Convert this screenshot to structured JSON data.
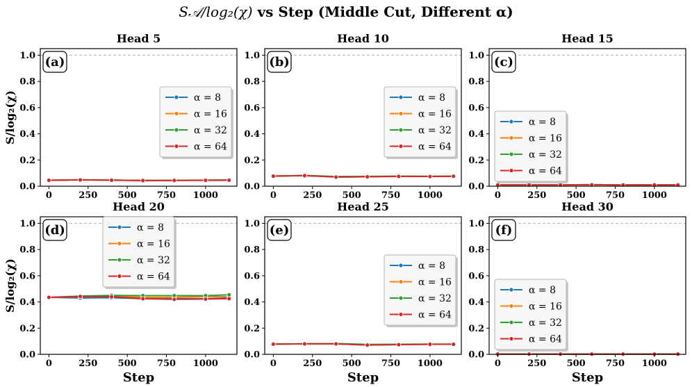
{
  "chart_data": {
    "type": "line",
    "title_math": "S𝒜/log₂(χ)",
    "title_text": " vs Step (Middle Cut, Different α)",
    "xlabel": "Step",
    "ylabel": "S/log₂(χ)",
    "xlim": [
      -55,
      1200
    ],
    "ylim": [
      0.0,
      1.05
    ],
    "xticks": [
      0,
      250,
      500,
      750,
      1000
    ],
    "yticks": [
      "0.0",
      "0.2",
      "0.4",
      "0.6",
      "0.8",
      "1.0"
    ],
    "reference_line_y": 1.0,
    "x": [
      0,
      200,
      400,
      600,
      800,
      1000,
      1150
    ],
    "series_names": [
      "α = 8",
      "α = 16",
      "α = 32",
      "α = 64"
    ],
    "colors": [
      "#1f77b4",
      "#ff7f0e",
      "#2ca02c",
      "#d62728"
    ],
    "panels": [
      {
        "tag": "(a)",
        "title": "Head 5",
        "legend_position": "center-right",
        "series": [
          {
            "name": "α = 8",
            "values": [
              0.045,
              0.048,
              0.046,
              0.043,
              0.044,
              0.045,
              0.046
            ]
          },
          {
            "name": "α = 16",
            "values": [
              0.045,
              0.048,
              0.046,
              0.043,
              0.044,
              0.045,
              0.046
            ]
          },
          {
            "name": "α = 32",
            "values": [
              0.045,
              0.049,
              0.046,
              0.044,
              0.045,
              0.046,
              0.047
            ]
          },
          {
            "name": "α = 64",
            "values": [
              0.045,
              0.048,
              0.046,
              0.043,
              0.044,
              0.045,
              0.046
            ]
          }
        ]
      },
      {
        "tag": "(b)",
        "title": "Head 10",
        "legend_position": "center-right",
        "series": [
          {
            "name": "α = 8",
            "values": [
              0.077,
              0.081,
              0.07,
              0.072,
              0.075,
              0.074,
              0.076
            ]
          },
          {
            "name": "α = 16",
            "values": [
              0.077,
              0.081,
              0.071,
              0.073,
              0.076,
              0.075,
              0.077
            ]
          },
          {
            "name": "α = 32",
            "values": [
              0.077,
              0.082,
              0.074,
              0.075,
              0.077,
              0.076,
              0.077
            ]
          },
          {
            "name": "α = 64",
            "values": [
              0.077,
              0.081,
              0.07,
              0.072,
              0.075,
              0.074,
              0.076
            ]
          }
        ]
      },
      {
        "tag": "(c)",
        "title": "Head 15",
        "legend_position": "center-left",
        "series": [
          {
            "name": "α = 8",
            "values": [
              0.01,
              0.01,
              0.01,
              0.011,
              0.01,
              0.01,
              0.01
            ]
          },
          {
            "name": "α = 16",
            "values": [
              0.01,
              0.01,
              0.01,
              0.011,
              0.01,
              0.01,
              0.01
            ]
          },
          {
            "name": "α = 32",
            "values": [
              0.01,
              0.01,
              0.01,
              0.011,
              0.01,
              0.01,
              0.01
            ]
          },
          {
            "name": "α = 64",
            "values": [
              0.01,
              0.01,
              0.01,
              0.011,
              0.01,
              0.01,
              0.01
            ]
          }
        ]
      },
      {
        "tag": "(d)",
        "title": "Head 20",
        "legend_position": "upper-center",
        "series": [
          {
            "name": "α = 8",
            "values": [
              0.435,
              0.43,
              0.432,
              0.425,
              0.425,
              0.425,
              0.43
            ]
          },
          {
            "name": "α = 16",
            "values": [
              0.435,
              0.44,
              0.445,
              0.435,
              0.435,
              0.44,
              0.44
            ]
          },
          {
            "name": "α = 32",
            "values": [
              0.435,
              0.445,
              0.45,
              0.448,
              0.448,
              0.448,
              0.455
            ]
          },
          {
            "name": "α = 64",
            "values": [
              0.435,
              0.442,
              0.44,
              0.425,
              0.42,
              0.422,
              0.425
            ]
          }
        ]
      },
      {
        "tag": "(e)",
        "title": "Head 25",
        "legend_position": "center-right",
        "series": [
          {
            "name": "α = 8",
            "values": [
              0.078,
              0.08,
              0.08,
              0.071,
              0.074,
              0.077,
              0.077
            ]
          },
          {
            "name": "α = 16",
            "values": [
              0.078,
              0.08,
              0.081,
              0.072,
              0.075,
              0.077,
              0.077
            ]
          },
          {
            "name": "α = 32",
            "values": [
              0.078,
              0.08,
              0.082,
              0.076,
              0.077,
              0.078,
              0.078
            ]
          },
          {
            "name": "α = 64",
            "values": [
              0.078,
              0.08,
              0.08,
              0.071,
              0.074,
              0.077,
              0.077
            ]
          }
        ]
      },
      {
        "tag": "(f)",
        "title": "Head 30",
        "legend_position": "center-left",
        "series": [
          {
            "name": "α = 8",
            "values": [
              0.002,
              0.002,
              0.002,
              0.002,
              0.002,
              0.002,
              0.002
            ]
          },
          {
            "name": "α = 16",
            "values": [
              0.002,
              0.002,
              0.002,
              0.002,
              0.002,
              0.002,
              0.002
            ]
          },
          {
            "name": "α = 32",
            "values": [
              0.002,
              0.002,
              0.002,
              0.002,
              0.002,
              0.002,
              0.002
            ]
          },
          {
            "name": "α = 64",
            "values": [
              0.002,
              0.002,
              0.002,
              0.002,
              0.002,
              0.002,
              0.002
            ]
          }
        ]
      }
    ]
  }
}
